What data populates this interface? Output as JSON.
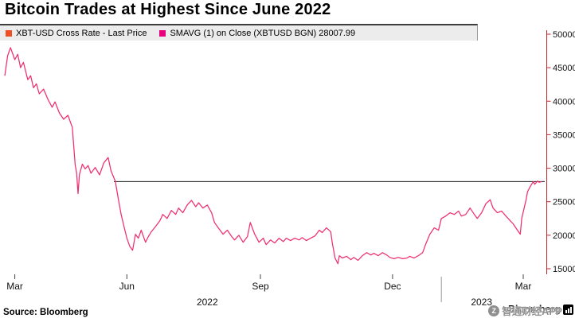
{
  "title": "Bitcoin Trades at Highest Since June 2022",
  "legend": {
    "items": [
      {
        "label": "XBT-USD Cross Rate - Last Price",
        "color": "#f04e23"
      },
      {
        "label": "SMAVG (1)  on Close (XBTUSD BGN) 28007.99",
        "color": "#e6007e"
      }
    ]
  },
  "source_label": "Source: Bloomberg",
  "footer": {
    "brand": "Bloomberg",
    "watermark": "智通财经APP"
  },
  "icons": {
    "watermark_logo_text": "Z"
  },
  "chart_data": {
    "type": "line",
    "title": "Bitcoin Trades at Highest Since June 2022",
    "x_unit": "days since 2022-03-01",
    "ylim": [
      15000,
      50000
    ],
    "y_ticks": [
      50000,
      45000,
      40000,
      35000,
      30000,
      25000,
      20000,
      15000
    ],
    "x_ticks": [
      {
        "day": 7,
        "label": "Mar"
      },
      {
        "day": 85,
        "label": "Jun"
      },
      {
        "day": 178,
        "label": "Sep"
      },
      {
        "day": 270,
        "label": "Dec"
      },
      {
        "day": 361,
        "label": "Mar"
      }
    ],
    "year_labels": [
      {
        "day": 141,
        "label": "2022"
      },
      {
        "day": 332,
        "label": "2023"
      }
    ],
    "year_separator_day": 304,
    "grid": false,
    "legend_position": "top",
    "axis_color": "#c1272d",
    "last_price_line": {
      "value": 28007.99,
      "start_day": 76,
      "color": "#1a1a1a"
    },
    "series": [
      {
        "name": "SMAVG (1) on Close (XBTUSD BGN)",
        "color": "#ee2f6e",
        "points": [
          [
            0,
            43800
          ],
          [
            2,
            46800
          ],
          [
            4,
            48000
          ],
          [
            7,
            46200
          ],
          [
            9,
            47000
          ],
          [
            11,
            45000
          ],
          [
            13,
            45800
          ],
          [
            16,
            43200
          ],
          [
            18,
            43800
          ],
          [
            20,
            42000
          ],
          [
            22,
            42600
          ],
          [
            24,
            41100
          ],
          [
            27,
            41800
          ],
          [
            30,
            40300
          ],
          [
            33,
            39100
          ],
          [
            35,
            39900
          ],
          [
            38,
            38250
          ],
          [
            41,
            37300
          ],
          [
            44,
            37900
          ],
          [
            47,
            36100
          ],
          [
            49,
            30500
          ],
          [
            50,
            29300
          ],
          [
            51,
            26200
          ],
          [
            52,
            29100
          ],
          [
            54,
            30600
          ],
          [
            56,
            29900
          ],
          [
            58,
            30400
          ],
          [
            60,
            29250
          ],
          [
            63,
            30100
          ],
          [
            66,
            29000
          ],
          [
            69,
            30800
          ],
          [
            72,
            31600
          ],
          [
            74,
            29600
          ],
          [
            77,
            28050
          ],
          [
            79,
            25450
          ],
          [
            81,
            23100
          ],
          [
            83,
            21300
          ],
          [
            85,
            19550
          ],
          [
            87,
            18350
          ],
          [
            89,
            17750
          ],
          [
            91,
            20150
          ],
          [
            93,
            19550
          ],
          [
            95,
            20750
          ],
          [
            98,
            18950
          ],
          [
            100,
            19800
          ],
          [
            102,
            20500
          ],
          [
            105,
            21300
          ],
          [
            108,
            22150
          ],
          [
            110,
            23100
          ],
          [
            113,
            22500
          ],
          [
            116,
            23700
          ],
          [
            119,
            23100
          ],
          [
            121,
            24050
          ],
          [
            124,
            23350
          ],
          [
            127,
            24500
          ],
          [
            130,
            25200
          ],
          [
            133,
            24250
          ],
          [
            135,
            24850
          ],
          [
            138,
            24050
          ],
          [
            141,
            24500
          ],
          [
            144,
            23350
          ],
          [
            146,
            21900
          ],
          [
            149,
            21000
          ],
          [
            152,
            20150
          ],
          [
            155,
            20750
          ],
          [
            158,
            19800
          ],
          [
            160,
            19300
          ],
          [
            163,
            20000
          ],
          [
            166,
            18950
          ],
          [
            169,
            19800
          ],
          [
            171,
            21900
          ],
          [
            174,
            20150
          ],
          [
            177,
            18950
          ],
          [
            180,
            19550
          ],
          [
            182,
            18600
          ],
          [
            185,
            19300
          ],
          [
            188,
            18850
          ],
          [
            191,
            19550
          ],
          [
            194,
            19050
          ],
          [
            196,
            19550
          ],
          [
            199,
            19200
          ],
          [
            202,
            19550
          ],
          [
            205,
            19300
          ],
          [
            207,
            19650
          ],
          [
            210,
            19200
          ],
          [
            213,
            19550
          ],
          [
            216,
            19900
          ],
          [
            219,
            20750
          ],
          [
            221,
            20400
          ],
          [
            224,
            21100
          ],
          [
            227,
            20500
          ],
          [
            228,
            18950
          ],
          [
            230,
            16600
          ],
          [
            232,
            15750
          ],
          [
            233,
            16950
          ],
          [
            235,
            16600
          ],
          [
            238,
            16850
          ],
          [
            241,
            16350
          ],
          [
            243,
            16700
          ],
          [
            246,
            16250
          ],
          [
            249,
            16950
          ],
          [
            252,
            17400
          ],
          [
            255,
            17050
          ],
          [
            257,
            17300
          ],
          [
            260,
            16950
          ],
          [
            263,
            17400
          ],
          [
            266,
            17050
          ],
          [
            268,
            16700
          ],
          [
            271,
            16500
          ],
          [
            274,
            16700
          ],
          [
            277,
            16500
          ],
          [
            280,
            16600
          ],
          [
            282,
            16850
          ],
          [
            285,
            16600
          ],
          [
            288,
            16950
          ],
          [
            291,
            17400
          ],
          [
            293,
            18600
          ],
          [
            296,
            20150
          ],
          [
            299,
            21100
          ],
          [
            302,
            20750
          ],
          [
            304,
            22500
          ],
          [
            307,
            22850
          ],
          [
            310,
            23350
          ],
          [
            313,
            23100
          ],
          [
            316,
            23600
          ],
          [
            318,
            22850
          ],
          [
            321,
            23100
          ],
          [
            324,
            24050
          ],
          [
            327,
            23100
          ],
          [
            329,
            22500
          ],
          [
            332,
            23350
          ],
          [
            335,
            24700
          ],
          [
            338,
            25300
          ],
          [
            340,
            24050
          ],
          [
            343,
            23350
          ],
          [
            346,
            23600
          ],
          [
            349,
            22850
          ],
          [
            352,
            22150
          ],
          [
            354,
            21700
          ],
          [
            357,
            20750
          ],
          [
            359,
            20150
          ],
          [
            360,
            22500
          ],
          [
            363,
            25300
          ],
          [
            364,
            26500
          ],
          [
            366,
            27300
          ],
          [
            368,
            28000
          ],
          [
            369,
            27600
          ],
          [
            371,
            28100
          ],
          [
            372,
            27900
          ],
          [
            374,
            28008
          ]
        ]
      }
    ]
  }
}
